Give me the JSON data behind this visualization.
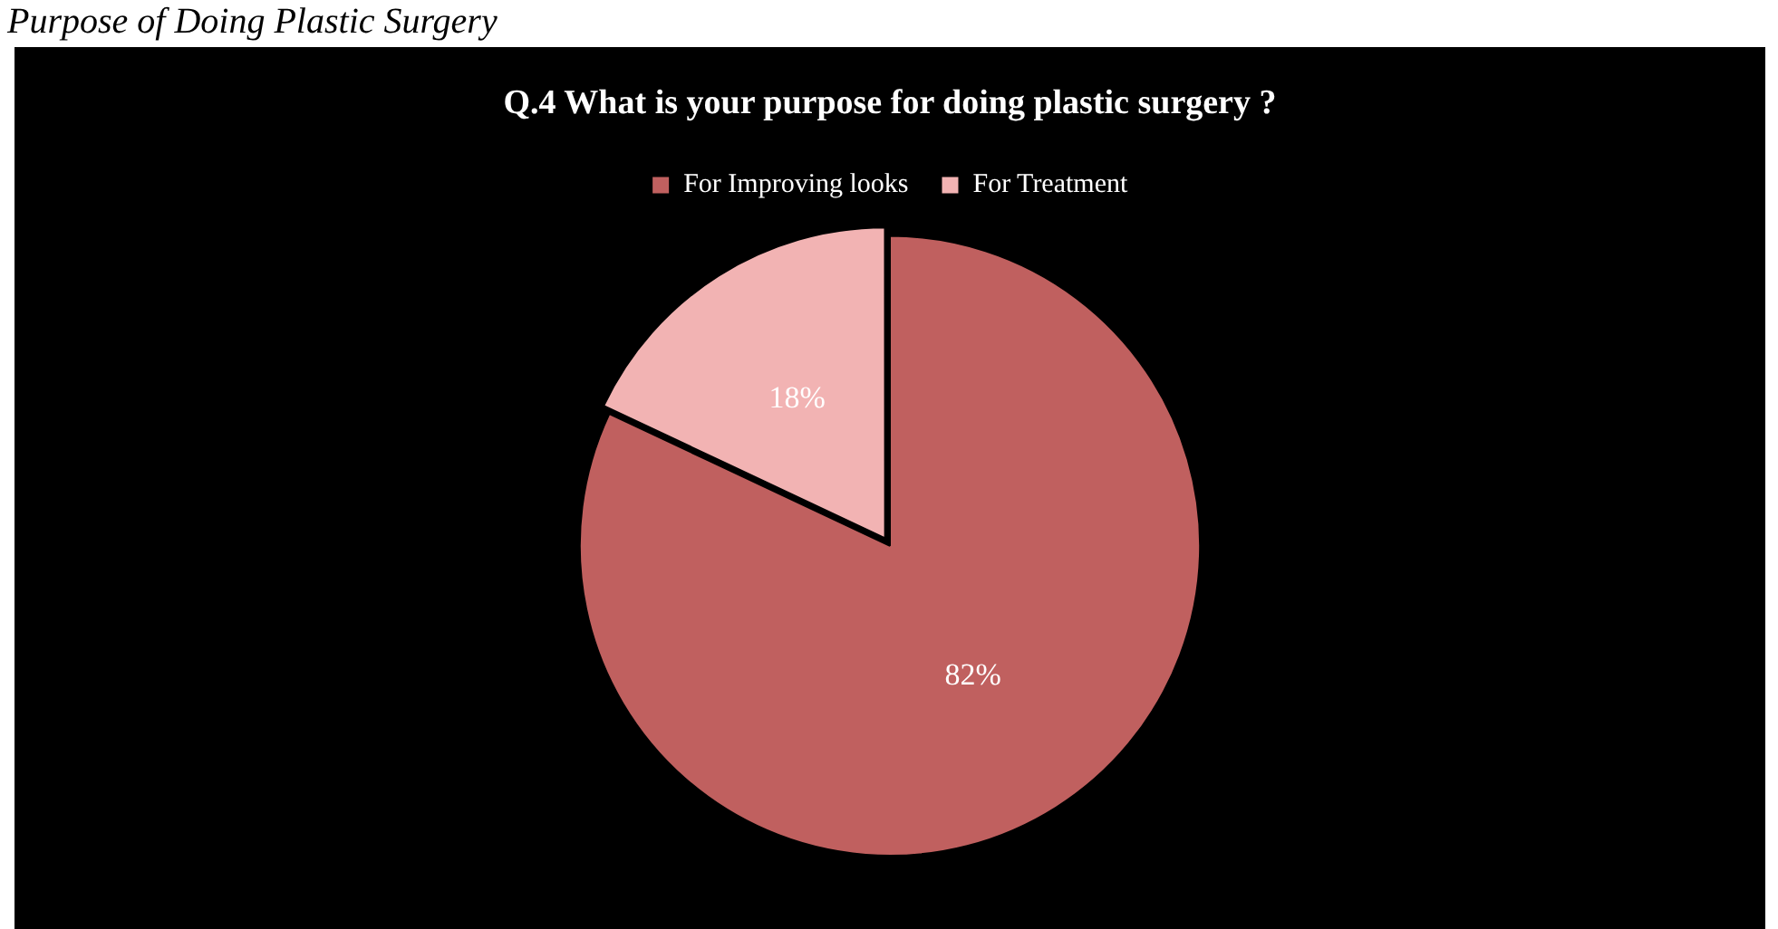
{
  "chart_data": {
    "type": "pie",
    "title": "Q.4 What is your purpose for doing plastic surgery ?",
    "annotations": [
      "Purpose of Doing Plastic Surgery"
    ],
    "categories": [
      "For Improving looks",
      "For Treatment"
    ],
    "values": [
      82,
      18
    ],
    "colors": [
      "#c0605f",
      "#f2b3b3"
    ],
    "value_labels": [
      "82%",
      "18%"
    ],
    "legend": "top"
  }
}
